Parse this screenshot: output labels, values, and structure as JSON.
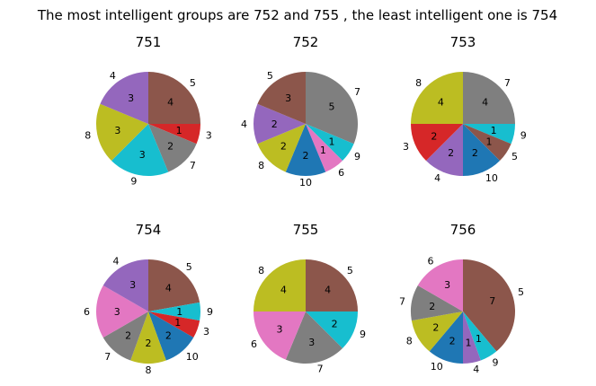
{
  "suptitle": "The most intelligent groups are 752 and 755 , the least intelligent one is 754",
  "colors": {
    "1": "#d62728",
    "2": "#1f77b4",
    "3": "#7f7f7f",
    "4": "#9467bd",
    "5": "#8c564b",
    "6": "#e377c2",
    "7": "#7f7f7f",
    "8": "#bcbd22",
    "9": "#17becf",
    "10": "#1f77b4"
  },
  "chart_data": [
    {
      "type": "pie",
      "title": "751",
      "labels": [
        "5",
        "3",
        "7",
        "9",
        "8",
        "4"
      ],
      "values": [
        4,
        1,
        2,
        3,
        3,
        3
      ],
      "colors": [
        "#8c564b",
        "#d62728",
        "#7f7f7f",
        "#17becf",
        "#bcbd22",
        "#9467bd"
      ]
    },
    {
      "type": "pie",
      "title": "752",
      "labels": [
        "7",
        "9",
        "6",
        "10",
        "8",
        "4",
        "5"
      ],
      "values": [
        5,
        1,
        1,
        2,
        2,
        2,
        3
      ],
      "colors": [
        "#7f7f7f",
        "#17becf",
        "#e377c2",
        "#1f77b4",
        "#bcbd22",
        "#9467bd",
        "#8c564b"
      ]
    },
    {
      "type": "pie",
      "title": "753",
      "labels": [
        "7",
        "9",
        "5",
        "10",
        "4",
        "3",
        "8"
      ],
      "values": [
        4,
        1,
        1,
        2,
        2,
        2,
        4
      ],
      "colors": [
        "#7f7f7f",
        "#17becf",
        "#8c564b",
        "#1f77b4",
        "#9467bd",
        "#d62728",
        "#bcbd22"
      ]
    },
    {
      "type": "pie",
      "title": "754",
      "labels": [
        "5",
        "9",
        "3",
        "10",
        "8",
        "7",
        "6",
        "4"
      ],
      "values": [
        4,
        1,
        1,
        2,
        2,
        2,
        3,
        3
      ],
      "colors": [
        "#8c564b",
        "#17becf",
        "#d62728",
        "#1f77b4",
        "#bcbd22",
        "#7f7f7f",
        "#e377c2",
        "#9467bd"
      ]
    },
    {
      "type": "pie",
      "title": "755",
      "labels": [
        "5",
        "9",
        "7",
        "6",
        "8"
      ],
      "values": [
        4,
        2,
        3,
        3,
        4
      ],
      "colors": [
        "#8c564b",
        "#17becf",
        "#7f7f7f",
        "#e377c2",
        "#bcbd22"
      ]
    },
    {
      "type": "pie",
      "title": "756",
      "labels": [
        "5",
        "9",
        "4",
        "10",
        "8",
        "7",
        "6"
      ],
      "values": [
        7,
        1,
        1,
        2,
        2,
        2,
        3
      ],
      "colors": [
        "#8c564b",
        "#17becf",
        "#9467bd",
        "#1f77b4",
        "#bcbd22",
        "#7f7f7f",
        "#e377c2"
      ]
    }
  ]
}
